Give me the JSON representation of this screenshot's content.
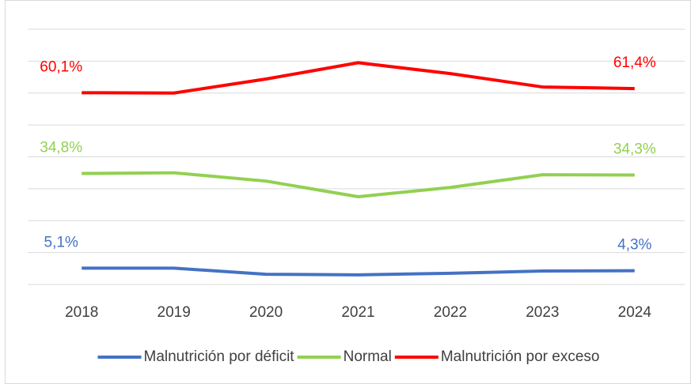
{
  "chart_data": {
    "type": "line",
    "categories": [
      "2018",
      "2019",
      "2020",
      "2021",
      "2022",
      "2023",
      "2024"
    ],
    "series": [
      {
        "name": "Malnutrición por déficit",
        "color": "#4472c4",
        "values": [
          5.1,
          5.1,
          3.2,
          3.0,
          3.5,
          4.2,
          4.3
        ],
        "value_labels": [
          "5,1%",
          null,
          null,
          null,
          null,
          null,
          "4,3%"
        ]
      },
      {
        "name": "Normal",
        "color": "#92d050",
        "values": [
          34.8,
          35.0,
          32.4,
          27.5,
          30.4,
          34.4,
          34.3
        ],
        "value_labels": [
          "34,8%",
          null,
          null,
          null,
          null,
          null,
          "34,3%"
        ]
      },
      {
        "name": "Malnutrición por exceso",
        "color": "#ff0000",
        "values": [
          60.1,
          60.0,
          64.4,
          69.5,
          66.1,
          61.9,
          61.4
        ],
        "value_labels": [
          "60,1%",
          null,
          null,
          null,
          null,
          null,
          "61,4%"
        ]
      }
    ],
    "ylim": [
      0,
      80
    ],
    "yticks": [
      0,
      10,
      20,
      30,
      40,
      50,
      60,
      70,
      80
    ],
    "grid": true,
    "legend": "bottom"
  }
}
